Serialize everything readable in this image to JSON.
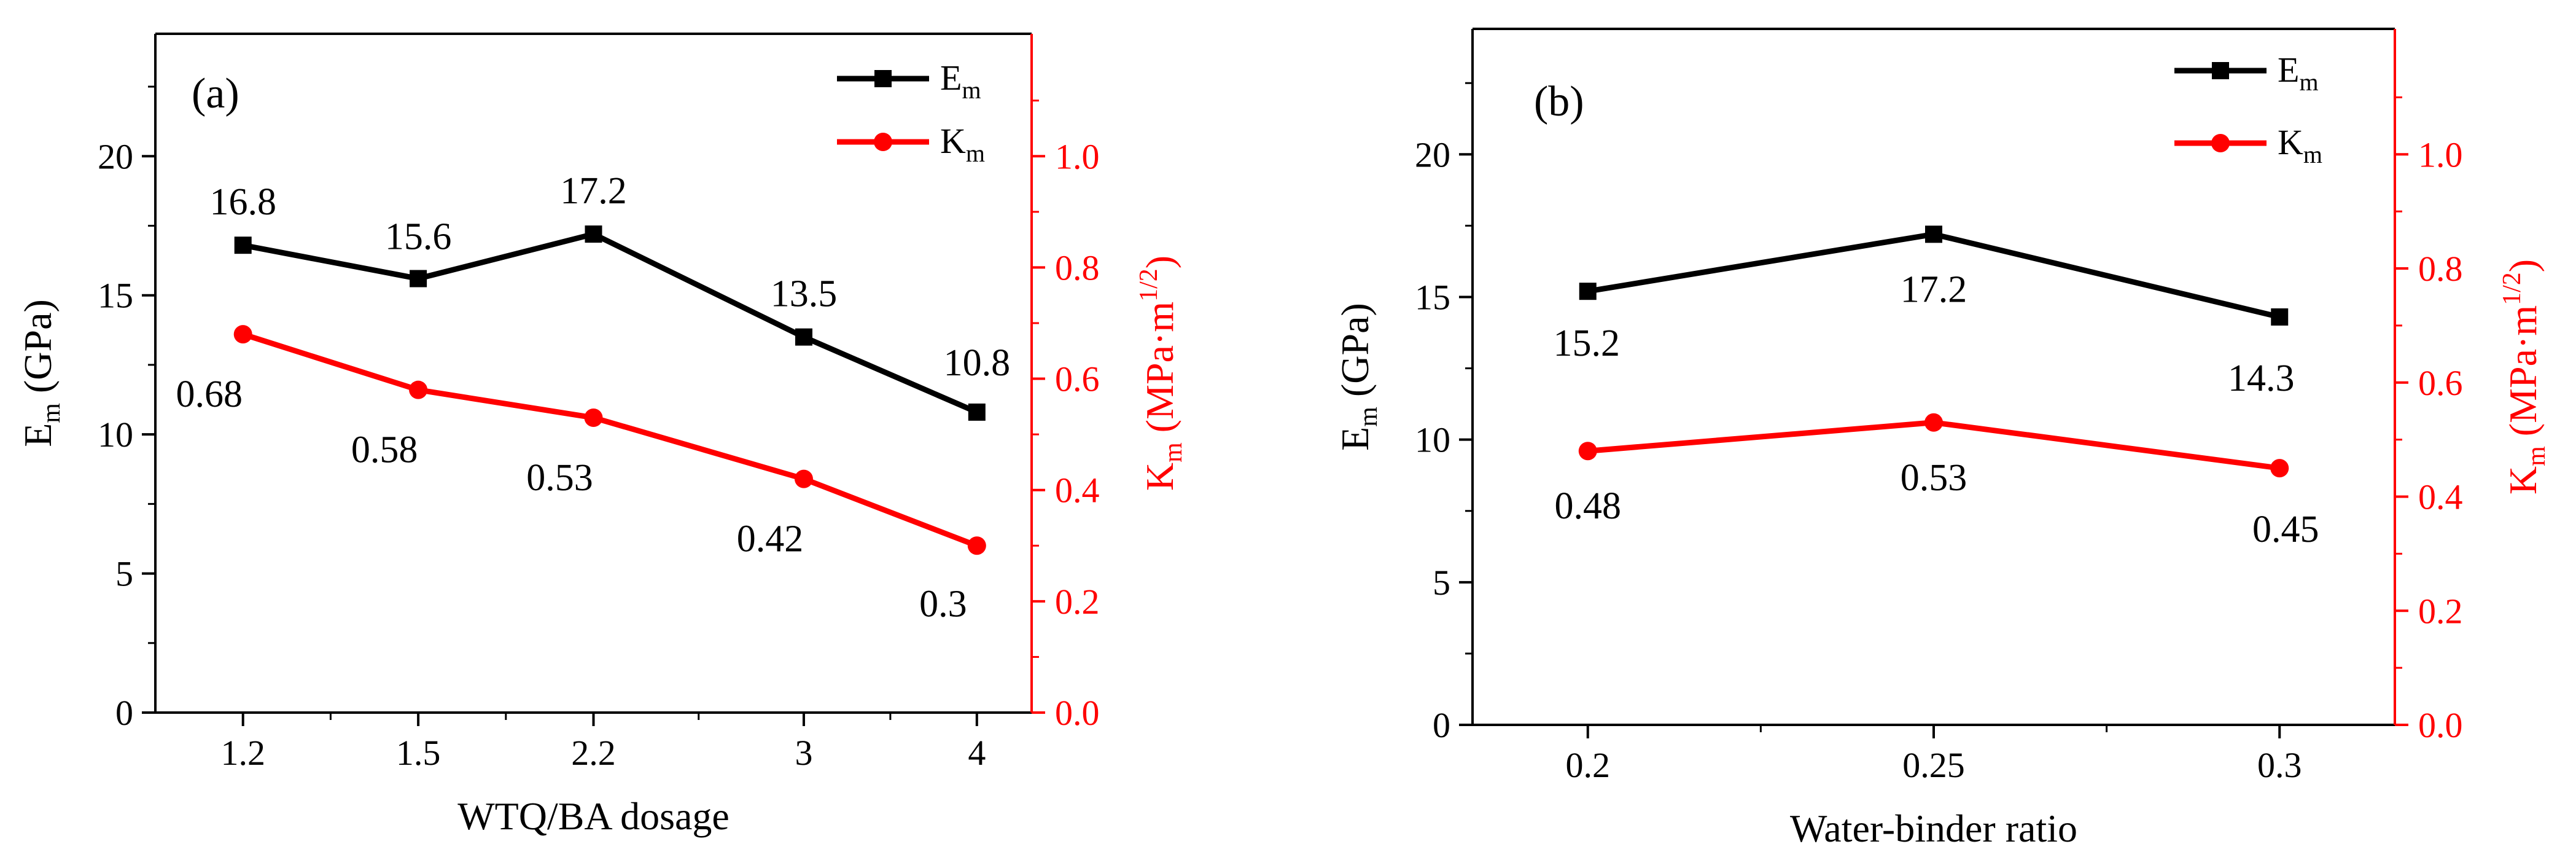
{
  "chart_data": [
    {
      "id": "a",
      "type": "line",
      "panel_label": "(a)",
      "categories": [
        "1.2",
        "1.5",
        "2.2",
        "3",
        "4"
      ],
      "xlabel": "WTQ/BA  dosage",
      "ylabel": {
        "main": "E",
        "sub": "m",
        "rest": " (GPa)"
      },
      "y2label": {
        "main": "K",
        "sub": "m",
        "rest_open": " (MPa·m",
        "sup": "1/2",
        "rest_close": ")"
      },
      "ylim": [
        0,
        24.4
      ],
      "y2lim": [
        0,
        1.22
      ],
      "yticks": [
        0,
        5,
        10,
        15,
        20
      ],
      "y2ticks": [
        0.0,
        0.2,
        0.4,
        0.6,
        0.8,
        1.0
      ],
      "ytick_labels": [
        "0",
        "5",
        "10",
        "15",
        "20"
      ],
      "y2tick_labels": [
        "0.0",
        "0.2",
        "0.4",
        "0.6",
        "0.8",
        "1.0"
      ],
      "series": [
        {
          "name": "E",
          "sub": "m",
          "axis": "left",
          "color": "#000000",
          "marker": "square",
          "values": [
            16.8,
            15.6,
            17.2,
            13.5,
            10.8
          ],
          "labels": [
            "16.8",
            "15.6",
            "17.2",
            "13.5",
            "10.8"
          ]
        },
        {
          "name": "K",
          "sub": "m",
          "axis": "right",
          "color": "#ff0000",
          "marker": "circle",
          "values": [
            0.68,
            0.58,
            0.53,
            0.42,
            0.3
          ],
          "labels": [
            "0.68",
            "0.58",
            "0.53",
            "0.42",
            "0.3"
          ]
        }
      ],
      "legend_position": "top-right"
    },
    {
      "id": "b",
      "type": "line",
      "panel_label": "(b)",
      "categories": [
        "0.2",
        "0.25",
        "0.3"
      ],
      "xlabel": "Water-binder ratio",
      "ylabel": {
        "main": "E",
        "sub": "m",
        "rest": " (GPa)"
      },
      "y2label": {
        "main": "K",
        "sub": "m",
        "rest_open": " (MPa·m",
        "sup": "1/2",
        "rest_close": ")"
      },
      "ylim": [
        0,
        24.4
      ],
      "y2lim": [
        0,
        1.22
      ],
      "yticks": [
        0,
        5,
        10,
        15,
        20
      ],
      "y2ticks": [
        0.0,
        0.2,
        0.4,
        0.6,
        0.8,
        1.0
      ],
      "ytick_labels": [
        "0",
        "5",
        "10",
        "15",
        "20"
      ],
      "y2tick_labels": [
        "0.0",
        "0.2",
        "0.4",
        "0.6",
        "0.8",
        "1.0"
      ],
      "series": [
        {
          "name": "E",
          "sub": "m",
          "axis": "left",
          "color": "#000000",
          "marker": "square",
          "values": [
            15.2,
            17.2,
            14.3
          ],
          "labels": [
            "15.2",
            "17.2",
            "14.3"
          ]
        },
        {
          "name": "K",
          "sub": "m",
          "axis": "right",
          "color": "#ff0000",
          "marker": "circle",
          "values": [
            0.48,
            0.53,
            0.45
          ],
          "labels": [
            "0.48",
            "0.53",
            "0.45"
          ]
        }
      ],
      "legend_position": "top-right"
    }
  ]
}
